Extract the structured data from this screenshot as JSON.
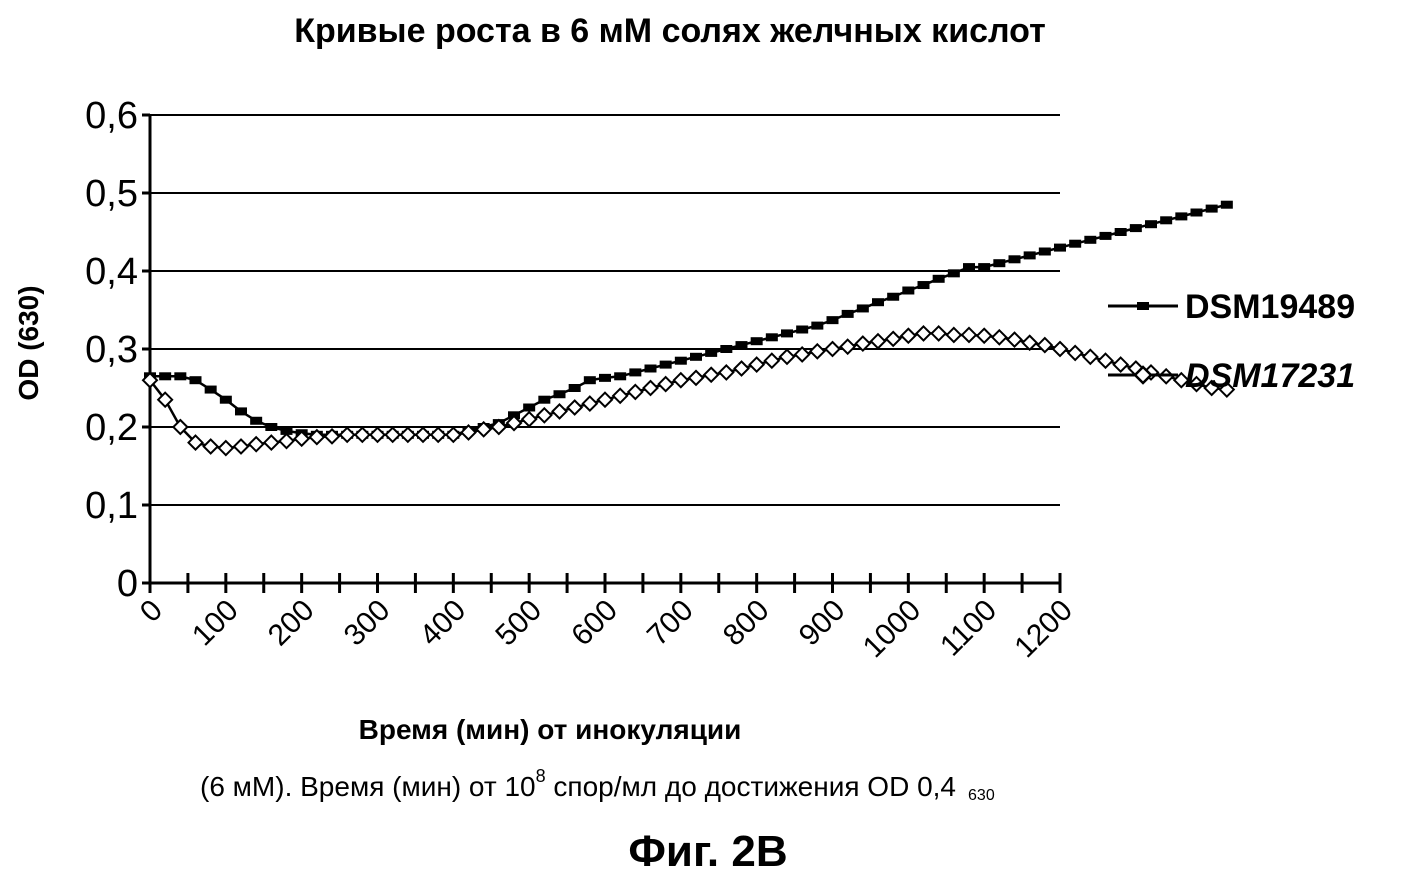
{
  "chart_data": {
    "type": "line",
    "title": "Кривые роста в 6 мМ солях желчных кислот",
    "xlabel": "Время (мин) от инокуляции",
    "ylabel": "OD (630)",
    "xlim": [
      0,
      1200
    ],
    "ylim": [
      0,
      0.6
    ],
    "x_ticks": [
      "0",
      "100",
      "200",
      "300",
      "400",
      "500",
      "600",
      "700",
      "800",
      "900",
      "1000",
      "1100",
      "1200"
    ],
    "y_ticks": [
      "0",
      "0,1",
      "0,2",
      "0,3",
      "0,4",
      "0,5",
      "0,6"
    ],
    "grid": "horizontal",
    "legend_position": "right",
    "x_step": 20,
    "series": [
      {
        "name": "DSM19489",
        "marker": "dash",
        "color": "#000000",
        "values": [
          0.265,
          0.265,
          0.265,
          0.26,
          0.248,
          0.235,
          0.22,
          0.208,
          0.2,
          0.195,
          0.192,
          0.19,
          0.19,
          0.19,
          0.19,
          0.19,
          0.19,
          0.19,
          0.19,
          0.19,
          0.19,
          0.195,
          0.2,
          0.205,
          0.215,
          0.225,
          0.235,
          0.242,
          0.25,
          0.26,
          0.263,
          0.265,
          0.27,
          0.275,
          0.28,
          0.285,
          0.29,
          0.295,
          0.3,
          0.305,
          0.31,
          0.315,
          0.32,
          0.325,
          0.33,
          0.337,
          0.345,
          0.352,
          0.36,
          0.367,
          0.375,
          0.382,
          0.39,
          0.397,
          0.405,
          0.405,
          0.41,
          0.415,
          0.42,
          0.425,
          0.43,
          0.435,
          0.44,
          0.445,
          0.45,
          0.455,
          0.46,
          0.465,
          0.47,
          0.475,
          0.48,
          0.485
        ]
      },
      {
        "name": "DSM17231",
        "marker": "diamond",
        "color": "#000000",
        "values": [
          0.26,
          0.235,
          0.2,
          0.18,
          0.175,
          0.173,
          0.175,
          0.178,
          0.18,
          0.182,
          0.185,
          0.187,
          0.188,
          0.19,
          0.19,
          0.19,
          0.19,
          0.19,
          0.19,
          0.19,
          0.19,
          0.193,
          0.197,
          0.2,
          0.205,
          0.21,
          0.215,
          0.22,
          0.225,
          0.23,
          0.235,
          0.24,
          0.245,
          0.25,
          0.255,
          0.26,
          0.263,
          0.267,
          0.27,
          0.275,
          0.28,
          0.285,
          0.29,
          0.293,
          0.297,
          0.3,
          0.303,
          0.307,
          0.31,
          0.313,
          0.317,
          0.32,
          0.32,
          0.318,
          0.318,
          0.317,
          0.315,
          0.312,
          0.308,
          0.305,
          0.3,
          0.295,
          0.29,
          0.285,
          0.28,
          0.275,
          0.27,
          0.265,
          0.26,
          0.255,
          0.25,
          0.248
        ]
      }
    ]
  },
  "caption": {
    "prefix": "(6 мМ). Время (мин) от 10",
    "superscript": "8",
    "middle": " спор/мл до достижения OD 0,4",
    "subscript": "630"
  },
  "figure_label": "Фиг. 2В"
}
